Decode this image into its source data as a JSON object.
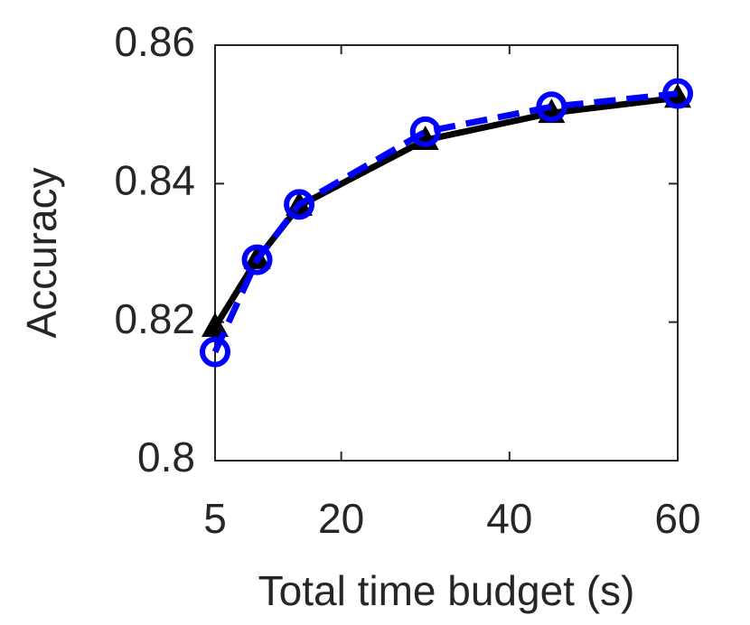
{
  "chart_data": {
    "type": "line",
    "x_label": "Total time budget (s)",
    "y_label": "Accuracy",
    "x": [
      5,
      10,
      15,
      30,
      45,
      60
    ],
    "series": [
      {
        "color": "#000000",
        "marker": "triangle",
        "dash": "solid",
        "values": [
          0.8193,
          0.8291,
          0.8368,
          0.8463,
          0.8502,
          0.8524
        ]
      },
      {
        "color": "#0000ff",
        "marker": "circle",
        "dash": "dashed",
        "values": [
          0.8157,
          0.829,
          0.837,
          0.8475,
          0.8511,
          0.853
        ]
      }
    ],
    "xlim": [
      5,
      60
    ],
    "xticks": [
      5,
      20,
      40,
      60
    ],
    "ylim": [
      0.8,
      0.86
    ],
    "yticks": [
      0.8,
      0.82,
      0.84,
      0.86
    ]
  }
}
